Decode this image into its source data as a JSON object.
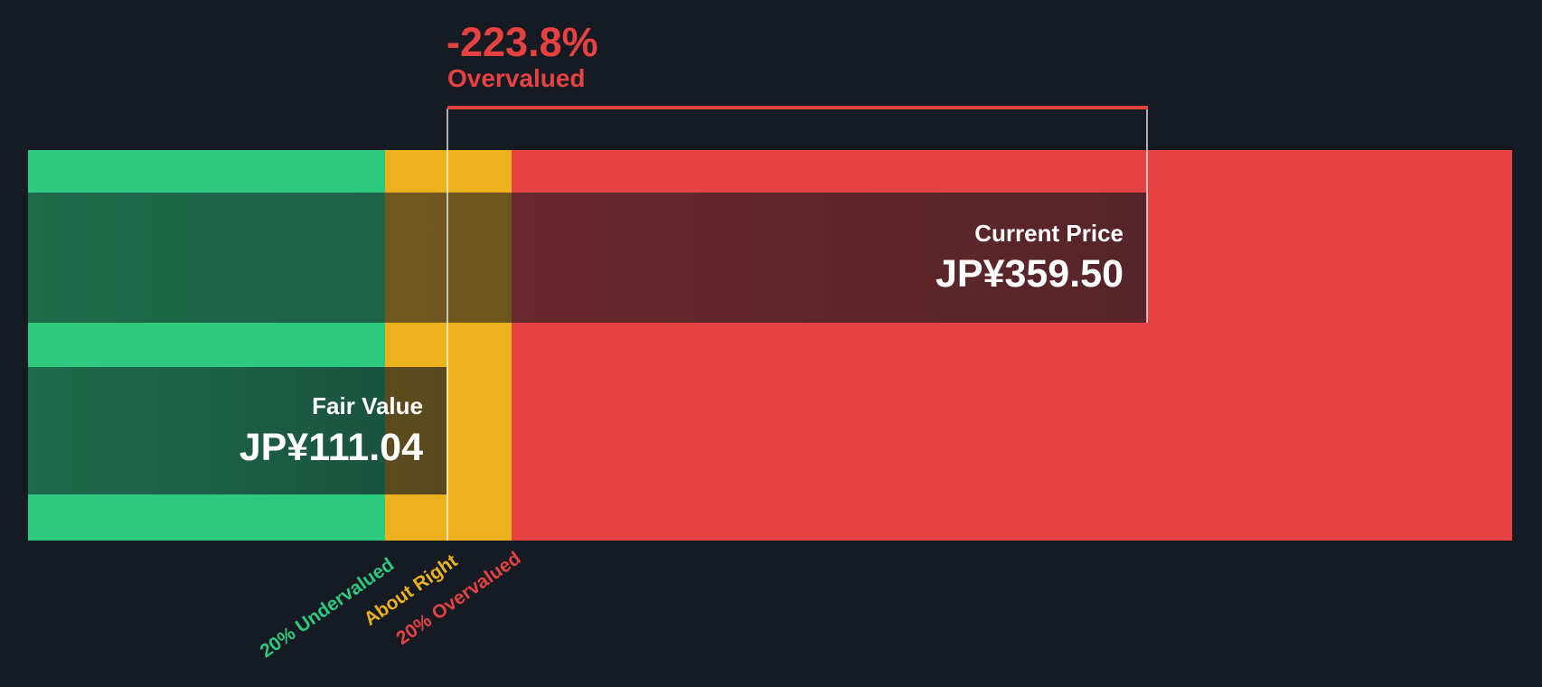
{
  "chart_data": {
    "type": "bar",
    "chart_kind": "fair-value-gauge",
    "orientation": "horizontal",
    "currency": "JP¥",
    "annotation": {
      "value": "-223.8%",
      "label": "Overvalued",
      "discount_pct": -223.8
    },
    "series": [
      {
        "name": "Current Price",
        "display_value": "JP¥359.50",
        "value": 359.5
      },
      {
        "name": "Fair Value",
        "display_value": "JP¥111.04",
        "value": 111.04
      }
    ],
    "zones": [
      {
        "label": "20% Undervalued",
        "color": "#2dc97e",
        "threshold": "price <= 0.8 x fair value"
      },
      {
        "label": "About Right",
        "color": "#ecb11e",
        "threshold": "0.8 x to 1.2 x fair value"
      },
      {
        "label": "20% Overvalued",
        "color": "#e54343",
        "threshold": "price >= 1.2 x fair value"
      }
    ],
    "legend": "none",
    "grid": false
  },
  "colors": {
    "background": "#151a23",
    "zone_undervalued": "#2dc97e",
    "zone_about_right": "#ecb11e",
    "zone_overvalued": "#e54343",
    "annotation_text": "#e64242",
    "bar_text": "#ffffff",
    "marker_line": "rgba(255,255,255,0.65)"
  }
}
